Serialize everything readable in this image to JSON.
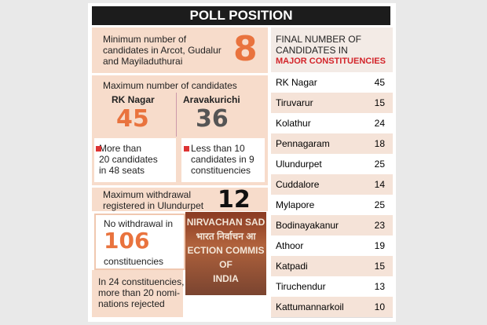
{
  "header": {
    "title": "POLL POSITION"
  },
  "minimum": {
    "lines": [
      "Minimum number of",
      "candidates in Arcot, Gudalur",
      "and Mayiladuthurai"
    ],
    "number": "8"
  },
  "maximum": {
    "label": "Maximum number of candidates",
    "items": [
      {
        "name": "RK Nagar",
        "number": "45"
      },
      {
        "name": "Aravakurichi",
        "number": "36"
      }
    ]
  },
  "notes": [
    {
      "lines": [
        "More than",
        "20 candidates",
        "in 48 seats"
      ]
    },
    {
      "lines": [
        "Less than 10",
        "candidates in 9",
        "constituencies"
      ]
    }
  ],
  "withdrawal": {
    "lines": [
      "Maximum withdrawal",
      "registered in Ulundurpet"
    ],
    "number": "12"
  },
  "no_withdrawal": {
    "before": "No withdrawal in",
    "number": "106",
    "after": "constituencies"
  },
  "photo": {
    "lines": [
      "NIRVACHAN SAD",
      "भारत निर्वाचन आ",
      "ECTION COMMIS",
      "OF",
      "INDIA"
    ]
  },
  "rejected": {
    "lines": [
      "In 24 constituencies,",
      "more than 20 nomi-",
      "nations rejected"
    ]
  },
  "table": {
    "heading": [
      "FINAL NUMBER OF",
      "CANDIDATES IN"
    ],
    "heading_highlight": "MAJOR CONSTITUENCIES",
    "rows": [
      [
        "RK Nagar",
        "45"
      ],
      [
        "Tiruvarur",
        "15"
      ],
      [
        "Kolathur",
        "24"
      ],
      [
        "Pennagaram",
        "18"
      ],
      [
        "Ulundurpet",
        "25"
      ],
      [
        "Cuddalore",
        "14"
      ],
      [
        "Mylapore",
        "25"
      ],
      [
        "Bodinayakanur",
        "23"
      ],
      [
        "Athoor",
        "19"
      ],
      [
        "Katpadi",
        "15"
      ],
      [
        "Tiruchendur",
        "13"
      ],
      [
        "Kattumannarkoil",
        "10"
      ]
    ]
  }
}
